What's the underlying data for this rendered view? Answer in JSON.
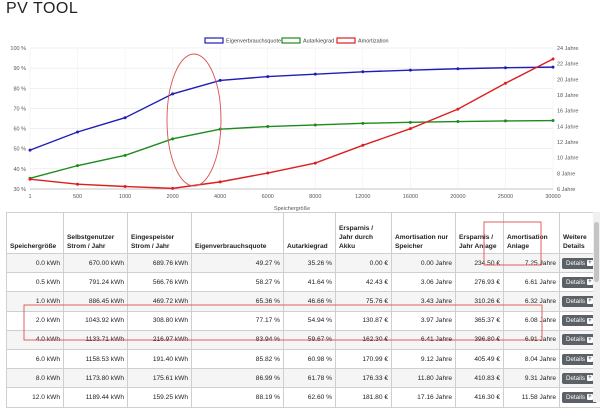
{
  "app": {
    "title": "PV TOOL"
  },
  "chart_data": {
    "type": "line",
    "title": "",
    "xlabel": "Speichergröße",
    "categories": [
      "1",
      "500",
      "1000",
      "2000",
      "4000",
      "6000",
      "8000",
      "12000",
      "16000",
      "20000",
      "25000",
      "30000"
    ],
    "left_axis_ticks": [
      "30 %",
      "40 %",
      "50 %",
      "60 %",
      "70 %",
      "80 %",
      "90 %",
      "100 %"
    ],
    "right_axis_ticks": [
      "6 Jahre",
      "8 Jahre",
      "10 Jahre",
      "12 Jahre",
      "14 Jahre",
      "16 Jahre",
      "18 Jahre",
      "20 Jahre",
      "22 Jahre",
      "24 Jahre"
    ],
    "ylim_left": [
      30,
      100
    ],
    "ylim_right": [
      6,
      24
    ],
    "series": [
      {
        "name": "Eigenverbrauchsquote",
        "color": "#1f1fb8",
        "axis": "left",
        "values": [
          49.3,
          58.3,
          65.4,
          77.2,
          83.9,
          85.8,
          87.0,
          88.2,
          89.0,
          89.7,
          90.2,
          90.5
        ]
      },
      {
        "name": "Autarkiegrad",
        "color": "#1e8a1e",
        "axis": "left",
        "values": [
          35.3,
          41.6,
          46.7,
          54.9,
          59.7,
          61.0,
          61.8,
          62.6,
          63.1,
          63.5,
          63.8,
          64.0
        ]
      },
      {
        "name": "Amortization",
        "color": "#dd1f1f",
        "axis": "right",
        "values": [
          7.25,
          6.61,
          6.32,
          6.08,
          6.91,
          8.04,
          9.31,
          11.58,
          13.7,
          16.2,
          19.5,
          22.6
        ]
      }
    ]
  },
  "table": {
    "headers": [
      "Speichergröße",
      "Selbstgenutzer Strom / Jahr",
      "Eingespeister Strom / Jahr",
      "Eigenverbrauchsquote",
      "Autarkiegrad",
      "Ersparnis / Jahr durch Akku",
      "Amortisation nur Speicher",
      "Ersparnis / Jahr Anlage",
      "Amortisation Anlage",
      "Weitere Details"
    ],
    "details_label": "Details",
    "rows": [
      [
        "0.0 kWh",
        "670.00 kWh",
        "689.76 kWh",
        "49.27 %",
        "35.26 %",
        "0.00 €",
        "0.00 Jahre",
        "234.50 €",
        "7.25 Jahre"
      ],
      [
        "0.5 kWh",
        "791.24 kWh",
        "566.76 kWh",
        "58.27 %",
        "41.64 %",
        "42.43 €",
        "3.06 Jahre",
        "276.93 €",
        "6.61 Jahre"
      ],
      [
        "1.0 kWh",
        "886.45 kWh",
        "469.72 kWh",
        "65.36 %",
        "46.66 %",
        "75.76 €",
        "3.43 Jahre",
        "310.26 €",
        "6.32 Jahre"
      ],
      [
        "2.0 kWh",
        "1043.92 kWh",
        "308.80 kWh",
        "77.17 %",
        "54.94 %",
        "130.87 €",
        "3.97 Jahre",
        "365.37 €",
        "6.08 Jahre"
      ],
      [
        "4.0 kWh",
        "1133.71 kWh",
        "216.97 kWh",
        "83.94 %",
        "59.67 %",
        "162.30 €",
        "6.41 Jahre",
        "396.80 €",
        "6.91 Jahre"
      ],
      [
        "6.0 kWh",
        "1158.53 kWh",
        "191.40 kWh",
        "85.82 %",
        "60.98 %",
        "170.99 €",
        "9.12 Jahre",
        "405.49 €",
        "8.04 Jahre"
      ],
      [
        "8.0 kWh",
        "1173.80 kWh",
        "175.61 kWh",
        "86.99 %",
        "61.78 %",
        "176.33 €",
        "11.80 Jahre",
        "410.83 €",
        "9.31 Jahre"
      ],
      [
        "12.0 kWh",
        "1189.44 kWh",
        "159.25 kWh",
        "88.19 %",
        "62.60 %",
        "181.80 €",
        "17.16 Jahre",
        "416.30 €",
        "11.58 Jahre"
      ]
    ]
  }
}
